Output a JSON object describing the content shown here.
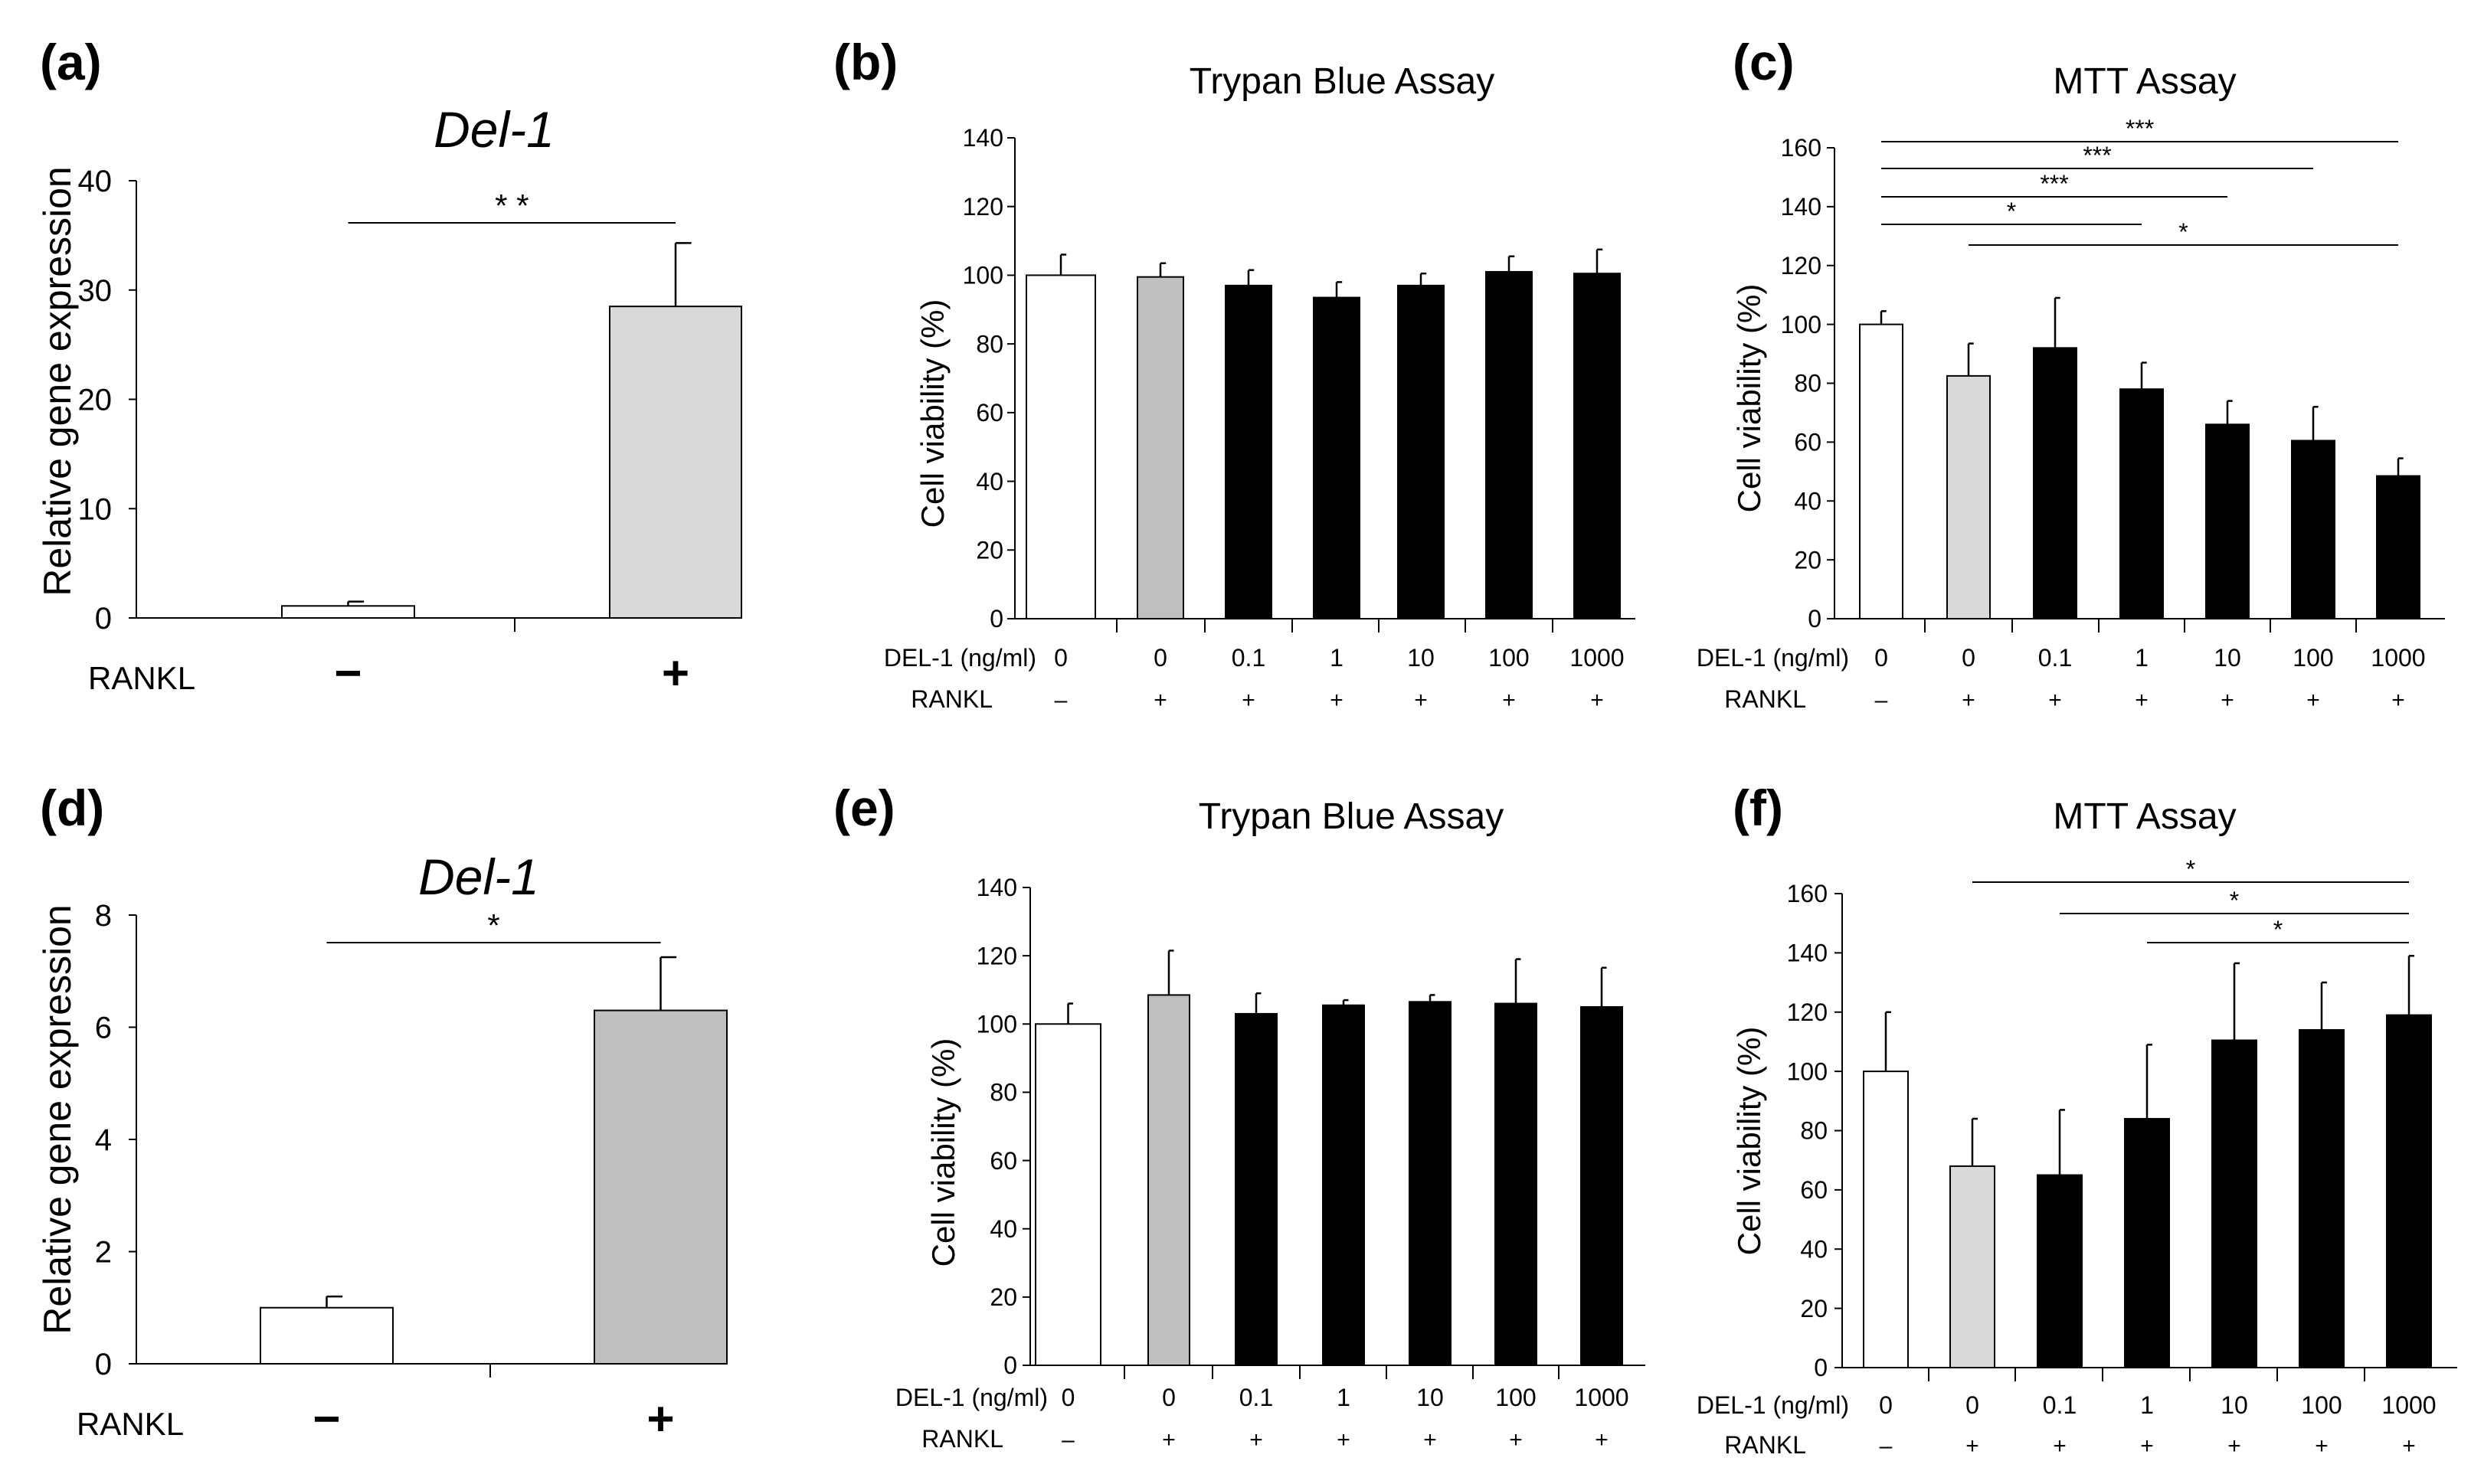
{
  "colors": {
    "white": "#ffffff",
    "light_gray": "#d9d9d9",
    "gray": "#bfbfbf",
    "black": "#000000"
  },
  "chart_data": [
    {
      "panel": "(a)",
      "type": "bar",
      "title": "Del-1",
      "title_style": "italic",
      "ylabel": "Relative gene expression",
      "ylim": [
        0,
        40
      ],
      "yticks": [
        0,
        10,
        20,
        30,
        40
      ],
      "row_labels": [
        "RANKL"
      ],
      "categories": [
        [
          "−"
        ],
        [
          "+"
        ]
      ],
      "values": [
        1.1,
        28.5
      ],
      "errors": [
        0.4,
        5.8
      ],
      "bar_colors": [
        "white",
        "light_gray"
      ],
      "significance": [
        {
          "from": 0,
          "to": 1,
          "label": "* *"
        }
      ]
    },
    {
      "panel": "(b)",
      "type": "bar",
      "title": "Trypan Blue Assay",
      "title_style": "normal",
      "ylabel": "Cell viability (%)",
      "ylim": [
        0,
        140
      ],
      "yticks": [
        0,
        20,
        40,
        60,
        80,
        100,
        120,
        140
      ],
      "row_labels": [
        "DEL-1 (ng/ml)",
        "RANKL"
      ],
      "categories": [
        [
          "0",
          "–"
        ],
        [
          "0",
          "+"
        ],
        [
          "0.1",
          "+"
        ],
        [
          "1",
          "+"
        ],
        [
          "10",
          "+"
        ],
        [
          "100",
          "+"
        ],
        [
          "1000",
          "+"
        ]
      ],
      "values": [
        100,
        99.5,
        97,
        93.5,
        97,
        101,
        100.5
      ],
      "errors": [
        6,
        4,
        4.5,
        4.5,
        3.5,
        4.5,
        7
      ],
      "bar_colors": [
        "white",
        "gray",
        "black",
        "black",
        "black",
        "black",
        "black"
      ],
      "significance": []
    },
    {
      "panel": "(c)",
      "type": "bar",
      "title": "MTT Assay",
      "title_style": "normal",
      "ylabel": "Cell viability (%)",
      "ylim": [
        0,
        160
      ],
      "yticks": [
        0,
        20,
        40,
        60,
        80,
        100,
        120,
        140,
        160
      ],
      "row_labels": [
        "DEL-1 (ng/ml)",
        "RANKL"
      ],
      "categories": [
        [
          "0",
          "–"
        ],
        [
          "0",
          "+"
        ],
        [
          "0.1",
          "+"
        ],
        [
          "1",
          "+"
        ],
        [
          "10",
          "+"
        ],
        [
          "100",
          "+"
        ],
        [
          "1000",
          "+"
        ]
      ],
      "values": [
        100,
        82.5,
        92,
        78,
        66,
        60.5,
        48.5
      ],
      "errors": [
        4.5,
        11,
        17,
        9,
        8,
        11.5,
        6
      ],
      "bar_colors": [
        "white",
        "light_gray",
        "black",
        "black",
        "black",
        "black",
        "black"
      ],
      "significance": [
        {
          "from": 0,
          "to": 6,
          "label": "***"
        },
        {
          "from": 0,
          "to": 5,
          "label": "***"
        },
        {
          "from": 0,
          "to": 4,
          "label": "***"
        },
        {
          "from": 0,
          "to": 3,
          "label": "*"
        },
        {
          "from": 1,
          "to": 6,
          "label": "*"
        }
      ]
    },
    {
      "panel": "(d)",
      "type": "bar",
      "title": "Del-1",
      "title_style": "italic",
      "ylabel": "Relative gene expression",
      "ylim": [
        0,
        8
      ],
      "yticks": [
        0,
        2,
        4,
        6,
        8
      ],
      "row_labels": [
        "RANKL"
      ],
      "categories": [
        [
          "−"
        ],
        [
          "+"
        ]
      ],
      "values": [
        1.0,
        6.3
      ],
      "errors": [
        0.2,
        0.95
      ],
      "bar_colors": [
        "white",
        "gray"
      ],
      "significance": [
        {
          "from": 0,
          "to": 1,
          "label": "*"
        }
      ]
    },
    {
      "panel": "(e)",
      "type": "bar",
      "title": "Trypan Blue Assay",
      "title_style": "normal",
      "ylabel": "Cell viability (%)",
      "ylim": [
        0,
        140
      ],
      "yticks": [
        0,
        20,
        40,
        60,
        80,
        100,
        120,
        140
      ],
      "row_labels": [
        "DEL-1 (ng/ml)",
        "RANKL"
      ],
      "categories": [
        [
          "0",
          "–"
        ],
        [
          "0",
          "+"
        ],
        [
          "0.1",
          "+"
        ],
        [
          "1",
          "+"
        ],
        [
          "10",
          "+"
        ],
        [
          "100",
          "+"
        ],
        [
          "1000",
          "+"
        ]
      ],
      "values": [
        100,
        108.5,
        103,
        105.5,
        106.5,
        106,
        105
      ],
      "errors": [
        6,
        13,
        6,
        1.5,
        2,
        13,
        11.5
      ],
      "bar_colors": [
        "white",
        "gray",
        "black",
        "black",
        "black",
        "black",
        "black"
      ],
      "significance": []
    },
    {
      "panel": "(f)",
      "type": "bar",
      "title": "MTT Assay",
      "title_style": "normal",
      "ylabel": "Cell viability (%)",
      "ylim": [
        0,
        160
      ],
      "yticks": [
        0,
        20,
        40,
        60,
        80,
        100,
        120,
        140,
        160
      ],
      "row_labels": [
        "DEL-1 (ng/ml)",
        "RANKL"
      ],
      "categories": [
        [
          "0",
          "–"
        ],
        [
          "0",
          "+"
        ],
        [
          "0.1",
          "+"
        ],
        [
          "1",
          "+"
        ],
        [
          "10",
          "+"
        ],
        [
          "100",
          "+"
        ],
        [
          "1000",
          "+"
        ]
      ],
      "values": [
        100,
        68,
        65,
        84,
        110.5,
        114,
        119
      ],
      "errors": [
        20,
        16,
        22,
        25,
        26,
        16,
        20
      ],
      "bar_colors": [
        "white",
        "light_gray",
        "black",
        "black",
        "black",
        "black",
        "black"
      ],
      "significance": [
        {
          "from": 1,
          "to": 6,
          "label": "*"
        },
        {
          "from": 2,
          "to": 6,
          "label": "*"
        },
        {
          "from": 3,
          "to": 6,
          "label": "*"
        }
      ]
    }
  ]
}
